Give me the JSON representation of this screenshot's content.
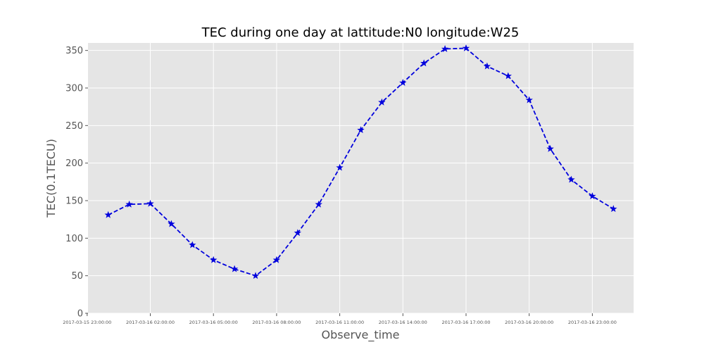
{
  "chart_data": {
    "type": "line",
    "title": "TEC during one day at lattitude:N0 longitude:W25",
    "xlabel": "Observe_time",
    "ylabel": "TEC(0.1TECU)",
    "ylim": [
      0,
      360
    ],
    "yticks": [
      0,
      50,
      100,
      150,
      200,
      250,
      300,
      350
    ],
    "xtick_labels": [
      "2017-03-15 23:00:00",
      "2017-03-16 02:00:00",
      "2017-03-16 05:00:00",
      "2017-03-16 08:00:00",
      "2017-03-16 11:00:00",
      "2017-03-16 14:00:00",
      "2017-03-16 17:00:00",
      "2017-03-16 20:00:00",
      "2017-03-16 23:00:00"
    ],
    "x": [
      "2017-03-16 00:00:00",
      "2017-03-16 01:00:00",
      "2017-03-16 02:00:00",
      "2017-03-16 03:00:00",
      "2017-03-16 04:00:00",
      "2017-03-16 05:00:00",
      "2017-03-16 06:00:00",
      "2017-03-16 07:00:00",
      "2017-03-16 08:00:00",
      "2017-03-16 09:00:00",
      "2017-03-16 10:00:00",
      "2017-03-16 11:00:00",
      "2017-03-16 12:00:00",
      "2017-03-16 13:00:00",
      "2017-03-16 14:00:00",
      "2017-03-16 15:00:00",
      "2017-03-16 16:00:00",
      "2017-03-16 17:00:00",
      "2017-03-16 18:00:00",
      "2017-03-16 19:00:00",
      "2017-03-16 20:00:00",
      "2017-03-16 21:00:00",
      "2017-03-16 22:00:00",
      "2017-03-16 23:00:00",
      "2017-03-17 00:00:00"
    ],
    "series": [
      {
        "values": [
          131,
          145,
          146,
          119,
          91,
          71,
          59,
          50,
          71,
          107,
          145,
          194,
          244,
          281,
          307,
          333,
          352,
          353,
          329,
          316,
          284,
          219,
          178,
          156,
          139
        ],
        "color": "#0000dd",
        "line_style": "dashed",
        "marker": "star"
      }
    ],
    "grid": true,
    "background": "#e5e5e5",
    "grid_color": "#ffffff"
  }
}
